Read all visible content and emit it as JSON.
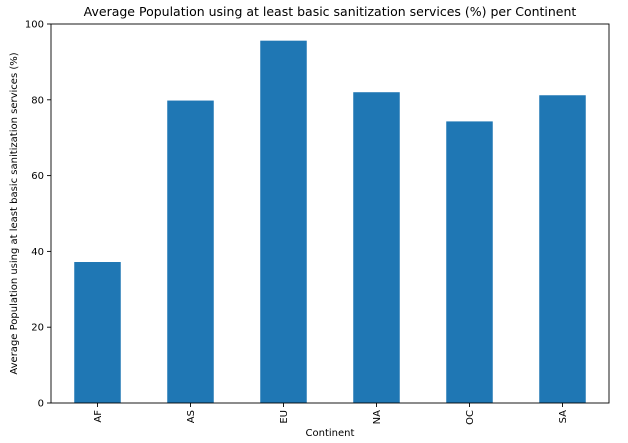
{
  "chart_data": {
    "type": "bar",
    "title": "Average Population using at least basic sanitization services (%) per Continent",
    "xlabel": "Continent",
    "ylabel": "Average Population using at least basic sanitization services (%)",
    "categories": [
      "AF",
      "AS",
      "EU",
      "NA",
      "OC",
      "SA"
    ],
    "values": [
      37.2,
      79.8,
      95.6,
      82.0,
      74.3,
      81.2
    ],
    "ylim": [
      0,
      100
    ],
    "yticks": [
      0,
      20,
      40,
      60,
      80,
      100
    ],
    "grid": false,
    "legend": "none",
    "bar_color": "#1f77b4"
  }
}
